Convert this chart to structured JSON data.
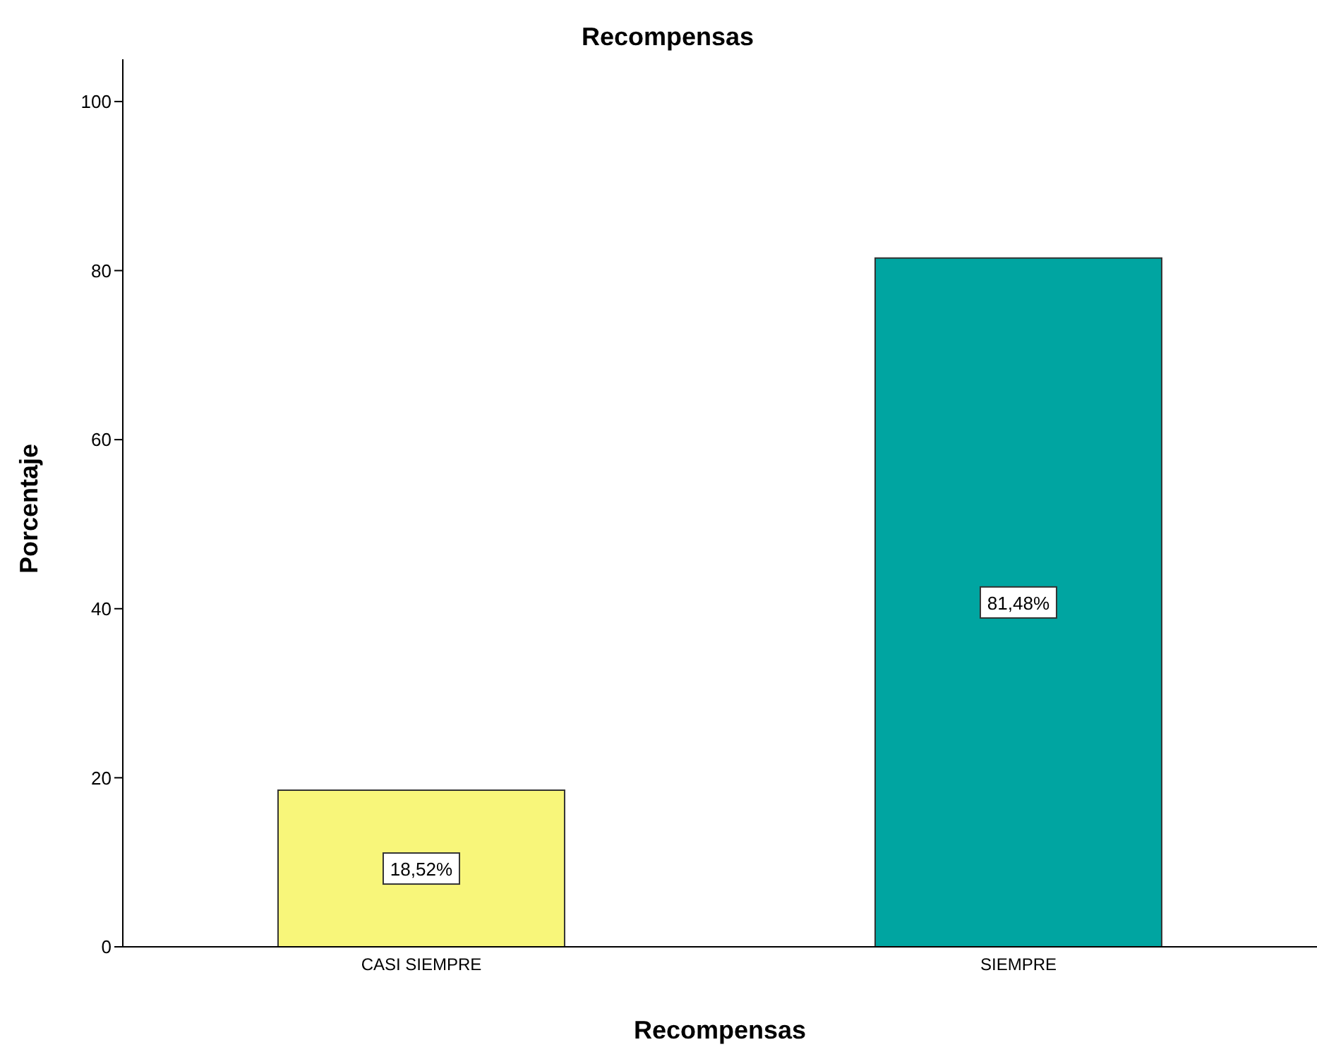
{
  "chart_data": {
    "type": "bar",
    "title": "Recompensas",
    "xlabel": "Recompensas",
    "ylabel": "Porcentaje",
    "categories": [
      "CASI SIEMPRE",
      "SIEMPRE"
    ],
    "values": [
      18.52,
      81.48
    ],
    "colors": [
      "#f8f67a",
      "#00a5a1"
    ],
    "value_labels": [
      "18,52%",
      "81,48%"
    ],
    "ylim": [
      0,
      105
    ],
    "yticks": [
      0,
      20,
      40,
      60,
      80,
      100
    ],
    "grid": false
  }
}
